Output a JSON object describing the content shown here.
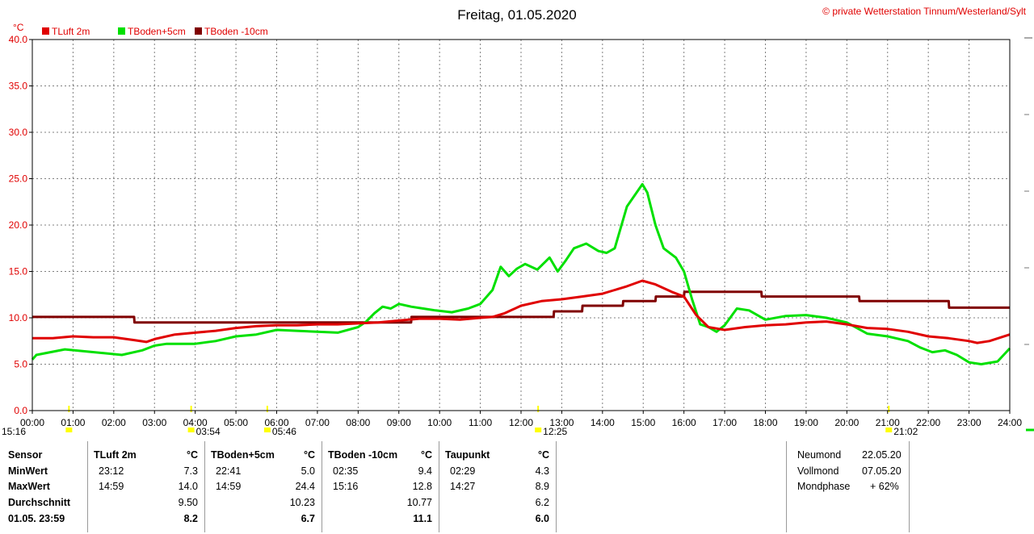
{
  "title": "Freitag, 01.05.2020",
  "copyright": "© private Wetterstation Tinnum/Westerland/Sylt",
  "unit_label": "°C",
  "colors": {
    "tluft": "#e00000",
    "tboden5": "#00e000",
    "tboden10": "#800000",
    "grid": "#808080",
    "marker": "#ffff00"
  },
  "chart_data": {
    "type": "line",
    "title": "Freitag, 01.05.2020",
    "ylabel": "°C",
    "xlabel": "",
    "ylim": [
      0,
      40
    ],
    "xlim": [
      0,
      24
    ],
    "x_ticks": [
      "00:00",
      "01:00",
      "02:00",
      "03:00",
      "04:00",
      "05:00",
      "06:00",
      "07:00",
      "08:00",
      "09:00",
      "10:00",
      "11:00",
      "12:00",
      "13:00",
      "14:00",
      "15:00",
      "16:00",
      "17:00",
      "18:00",
      "19:00",
      "20:00",
      "21:00",
      "22:00",
      "23:00",
      "24:00"
    ],
    "y_ticks": [
      "0.0",
      "5.0",
      "10.0",
      "15.0",
      "20.0",
      "25.0",
      "30.0",
      "35.0",
      "40.0"
    ],
    "grid": true,
    "legend": "top-left",
    "series": [
      {
        "name": "TLuft 2m",
        "color": "#e00000",
        "x": [
          0,
          0.5,
          1,
          1.5,
          2,
          2.5,
          2.8,
          3,
          3.5,
          4,
          4.5,
          5,
          5.5,
          6,
          6.5,
          7,
          7.5,
          8,
          8.5,
          9,
          9.5,
          10,
          10.5,
          11,
          11.3,
          11.6,
          12,
          12.5,
          13,
          13.5,
          14,
          14.3,
          14.6,
          14.98,
          15.3,
          15.7,
          16,
          16.3,
          16.6,
          17,
          17.5,
          18,
          18.5,
          19,
          19.5,
          20,
          20.5,
          21,
          21.5,
          22,
          22.5,
          23,
          23.2,
          23.5,
          24
        ],
        "y": [
          7.8,
          7.8,
          8,
          7.9,
          7.9,
          7.6,
          7.4,
          7.7,
          8.2,
          8.4,
          8.6,
          8.9,
          9.1,
          9.2,
          9.2,
          9.3,
          9.3,
          9.4,
          9.5,
          9.7,
          9.9,
          9.9,
          9.8,
          10,
          10.1,
          10.5,
          11.3,
          11.8,
          12,
          12.3,
          12.6,
          13,
          13.4,
          14,
          13.6,
          12.8,
          12.3,
          10.3,
          9,
          8.7,
          9,
          9.2,
          9.3,
          9.5,
          9.6,
          9.3,
          8.9,
          8.8,
          8.5,
          8,
          7.8,
          7.5,
          7.3,
          7.5,
          8.2
        ]
      },
      {
        "name": "TBoden+5cm",
        "color": "#00e000",
        "x": [
          0,
          0.1,
          0.8,
          2.2,
          2.7,
          3,
          3.3,
          3.6,
          4.0,
          4.5,
          5,
          5.5,
          6,
          6.5,
          7,
          7.5,
          8,
          8.2,
          8.4,
          8.6,
          8.8,
          9.0,
          9.3,
          9.6,
          9.9,
          10.3,
          10.7,
          11,
          11.3,
          11.5,
          11.7,
          11.9,
          12.1,
          12.4,
          12.7,
          12.9,
          13.1,
          13.3,
          13.6,
          13.9,
          14.1,
          14.3,
          14.6,
          14.98,
          15.1,
          15.3,
          15.5,
          15.8,
          16,
          16.2,
          16.4,
          16.6,
          16.8,
          17,
          17.3,
          17.6,
          18,
          18.5,
          19,
          19.5,
          20,
          20.5,
          21,
          21.5,
          21.8,
          22.1,
          22.41,
          22.7,
          23,
          23.3,
          23.7,
          24
        ],
        "y": [
          5.5,
          6,
          6.6,
          6,
          6.5,
          7,
          7.2,
          7.2,
          7.2,
          7.5,
          8,
          8.2,
          8.7,
          8.6,
          8.5,
          8.4,
          9,
          9.6,
          10.5,
          11.2,
          11,
          11.5,
          11.2,
          11,
          10.8,
          10.6,
          11,
          11.5,
          13,
          15.5,
          14.5,
          15.3,
          15.8,
          15.2,
          16.5,
          15,
          16.2,
          17.5,
          18,
          17.2,
          17,
          17.5,
          22,
          24.4,
          23.5,
          20,
          17.5,
          16.5,
          15,
          12,
          9.3,
          9,
          8.5,
          9.2,
          11,
          10.8,
          9.8,
          10.2,
          10.3,
          10,
          9.5,
          8.3,
          8,
          7.5,
          6.8,
          6.3,
          6.5,
          6,
          5.2,
          5,
          5.3,
          6.7
        ]
      },
      {
        "name": "TBoden -10cm",
        "color": "#800000",
        "x": [
          0,
          2.5,
          2.51,
          8.3,
          8.31,
          9.3,
          9.31,
          10.2,
          10.21,
          11,
          11.01,
          12.8,
          12.81,
          13.5,
          13.51,
          14.5,
          14.51,
          15.3,
          15.31,
          16.0,
          16.01,
          17.9,
          17.91,
          20.3,
          20.31,
          22.5,
          22.51,
          24
        ],
        "y": [
          10.1,
          10.1,
          9.5,
          9.5,
          9.5,
          9.5,
          10.1,
          10.1,
          10.1,
          10.1,
          10.1,
          10.1,
          10.7,
          10.7,
          11.3,
          11.3,
          11.8,
          11.8,
          12.3,
          12.3,
          12.8,
          12.8,
          12.3,
          12.3,
          11.8,
          11.8,
          11.1,
          11.1
        ]
      }
    ],
    "markers": [
      {
        "time": "15:16",
        "x": 0.9
      },
      {
        "time": "03:54",
        "x": 3.9
      },
      {
        "time": "05:46",
        "x": 5.77
      },
      {
        "time": "12:25",
        "x": 12.42
      },
      {
        "time": "21:02",
        "x": 21.03
      }
    ]
  },
  "table": {
    "sensor": {
      "header": "Sensor",
      "rows": [
        "MinWert",
        "MaxWert",
        "Durchschnitt",
        "01.05. 23:59"
      ]
    },
    "columns": [
      {
        "header": "TLuft 2m",
        "unit": "°C",
        "min_time": "23:12",
        "min_val": "7.3",
        "max_time": "14:59",
        "max_val": "14.0",
        "avg": "9.50",
        "current": "8.2"
      },
      {
        "header": "TBoden+5cm",
        "unit": "°C",
        "min_time": "22:41",
        "min_val": "5.0",
        "max_time": "14:59",
        "max_val": "24.4",
        "avg": "10.23",
        "current": "6.7"
      },
      {
        "header": "TBoden -10cm",
        "unit": "°C",
        "min_time": "02:35",
        "min_val": "9.4",
        "max_time": "15:16",
        "max_val": "12.8",
        "avg": "10.77",
        "current": "11.1"
      },
      {
        "header": "Taupunkt",
        "unit": "°C",
        "min_time": "02:29",
        "min_val": "4.3",
        "max_time": "14:27",
        "max_val": "8.9",
        "avg": "6.2",
        "current": "6.0"
      }
    ],
    "moon": {
      "neumond_label": "Neumond",
      "neumond_date": "22.05.20",
      "vollmond_label": "Vollmond",
      "vollmond_date": "07.05.20",
      "phase_label": "Mondphase",
      "phase_value": "+ 62%"
    }
  }
}
